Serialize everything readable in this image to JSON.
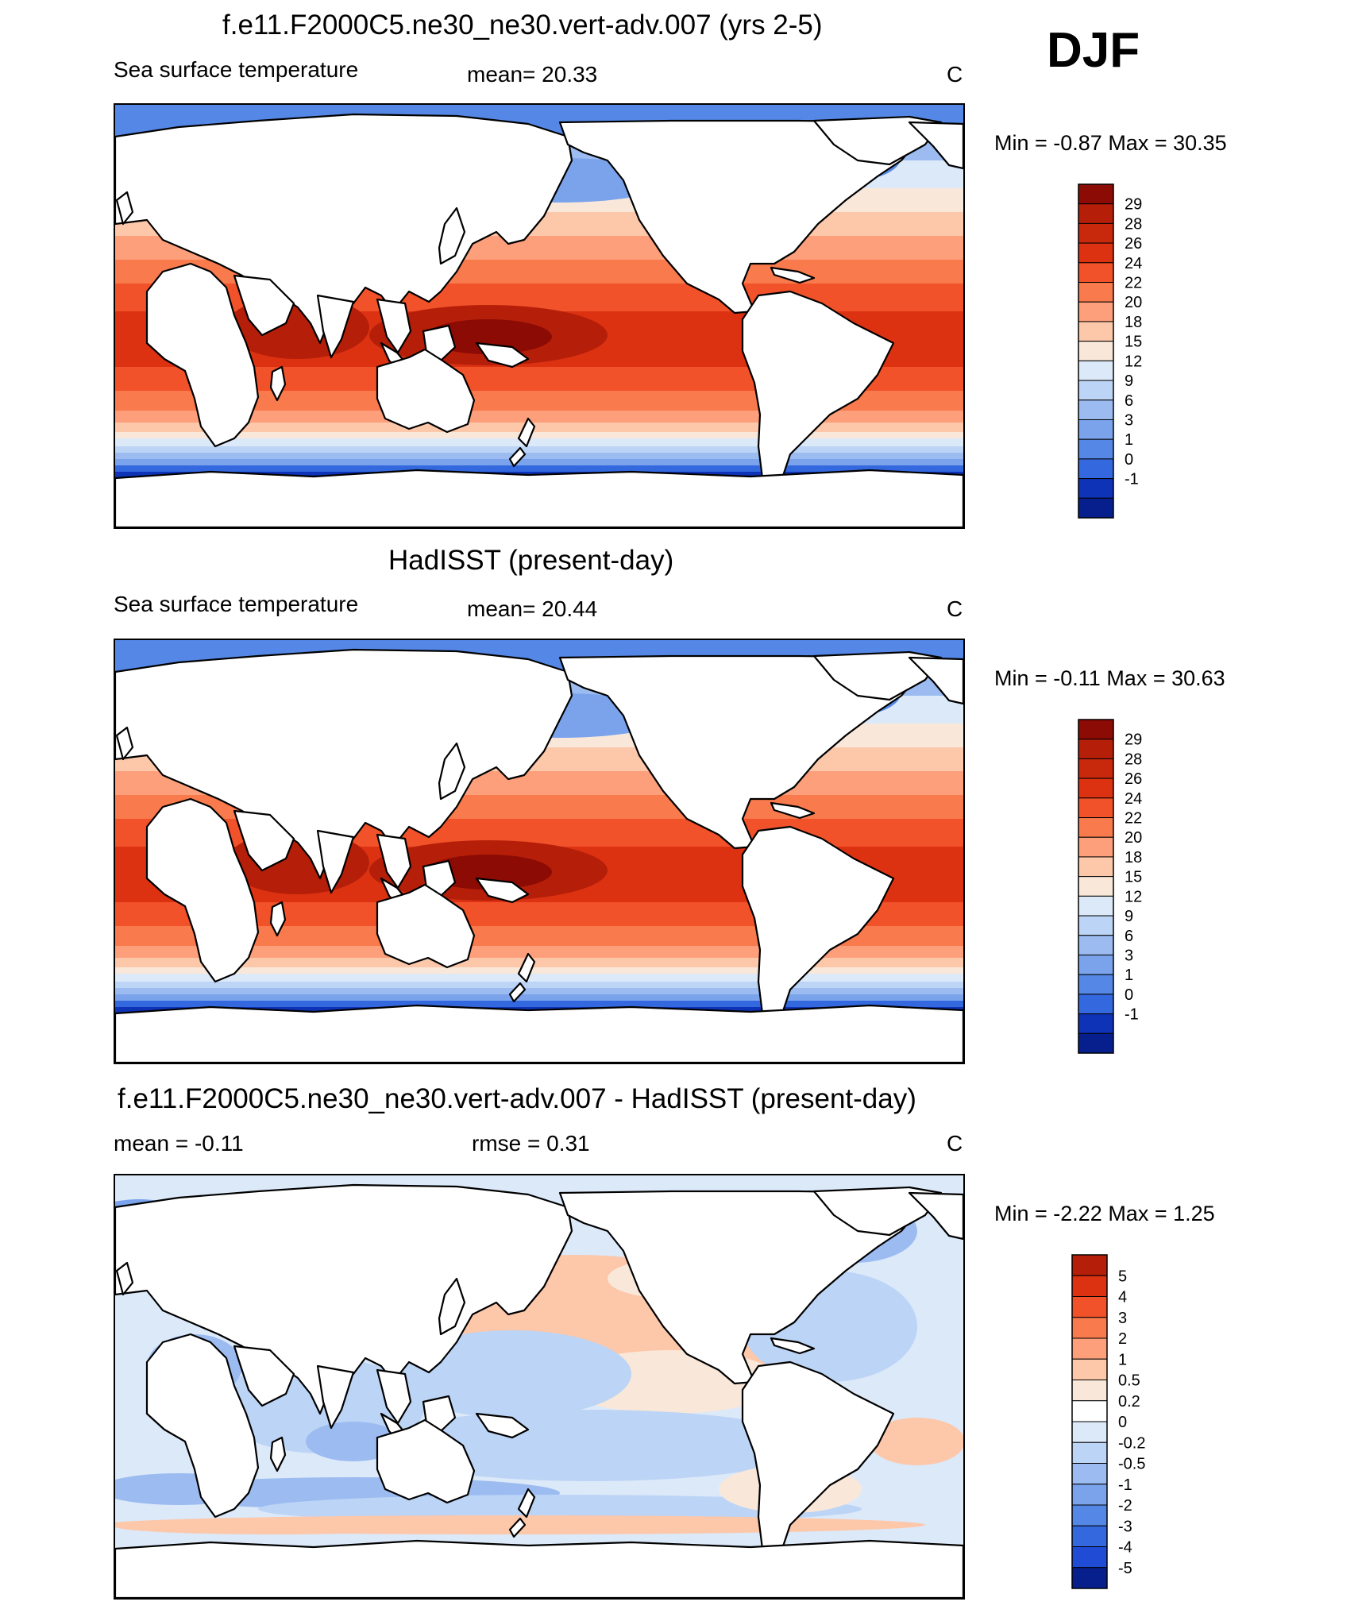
{
  "season": "DJF",
  "colors": {
    "warm": [
      "#f9e8da",
      "#fdc7aa",
      "#fc9f7a",
      "#f87a4d",
      "#f2522a",
      "#dc3212",
      "#b51f09",
      "#8c0b04"
    ],
    "cold": [
      "#dce9f9",
      "#bcd4f5",
      "#9cbcf1",
      "#7aa3ec",
      "#5588e6",
      "#3468df",
      "#1f4bd5",
      "#0f33b6",
      "#061f8d"
    ],
    "land": "#ffffff",
    "coast": "#000000"
  },
  "chart_data": [
    {
      "type": "heatmap",
      "title": "f.e11.F2000C5.ne30_ne30.vert-adv.007 (yrs 2-5)",
      "left_label": "Sea surface temperature",
      "center_label": "mean=  20.33",
      "units": "C",
      "minmax": "Min =  -0.87 Max =  30.35",
      "variable": "Sea surface temperature",
      "mean": 20.33,
      "min": -0.87,
      "max": 30.35,
      "colorbar": {
        "levels": [
          "29",
          "28",
          "26",
          "24",
          "22",
          "20",
          "18",
          "15",
          "12",
          "9",
          "6",
          "3",
          "1",
          "0",
          "-1"
        ],
        "colors": [
          "#8c0b04",
          "#b51f09",
          "#c8280c",
          "#dc3212",
          "#f2522a",
          "#f87a4d",
          "#fc9f7a",
          "#fdc7aa",
          "#f9e8da",
          "#dce9f9",
          "#bcd4f5",
          "#9cbcf1",
          "#7aa3ec",
          "#5588e6",
          "#3468df",
          "#0f33b6",
          "#061f8d"
        ]
      }
    },
    {
      "type": "heatmap",
      "title": "HadISST (present-day)",
      "left_label": "Sea surface temperature",
      "center_label": "mean=  20.44",
      "units": "C",
      "minmax": "Min =  -0.11 Max =  30.63",
      "variable": "Sea surface temperature",
      "mean": 20.44,
      "min": -0.11,
      "max": 30.63,
      "colorbar": {
        "levels": [
          "29",
          "28",
          "26",
          "24",
          "22",
          "20",
          "18",
          "15",
          "12",
          "9",
          "6",
          "3",
          "1",
          "0",
          "-1"
        ],
        "colors": [
          "#8c0b04",
          "#b51f09",
          "#c8280c",
          "#dc3212",
          "#f2522a",
          "#f87a4d",
          "#fc9f7a",
          "#fdc7aa",
          "#f9e8da",
          "#dce9f9",
          "#bcd4f5",
          "#9cbcf1",
          "#7aa3ec",
          "#5588e6",
          "#3468df",
          "#0f33b6",
          "#061f8d"
        ]
      }
    },
    {
      "type": "heatmap",
      "title": "f.e11.F2000C5.ne30_ne30.vert-adv.007 - HadISST (present-day)",
      "left_label": "mean =  -0.11",
      "center_label": "rmse =    0.31",
      "units": "C",
      "minmax": "Min =  -2.22 Max =    1.25",
      "mean": -0.11,
      "rmse": 0.31,
      "min": -2.22,
      "max": 1.25,
      "colorbar": {
        "levels": [
          "5",
          "4",
          "3",
          "2",
          "1",
          "0.5",
          "0.2",
          "0",
          "-0.2",
          "-0.5",
          "-1",
          "-2",
          "-3",
          "-4",
          "-5"
        ],
        "colors": [
          "#b51f09",
          "#dc3212",
          "#f2522a",
          "#f87a4d",
          "#fc9f7a",
          "#fdc7aa",
          "#f9e8da",
          "#ffffff",
          "#dce9f9",
          "#bcd4f5",
          "#9cbcf1",
          "#7aa3ec",
          "#5588e6",
          "#3468df",
          "#1f4bd5",
          "#061f8d"
        ]
      }
    }
  ]
}
